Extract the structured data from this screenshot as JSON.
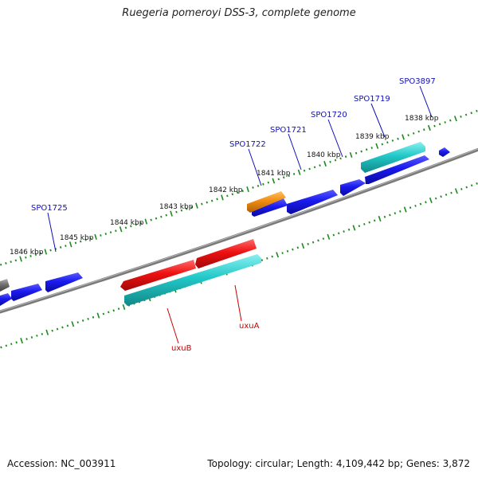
{
  "title": "Ruegeria pomeroyi DSS-3, complete genome",
  "footer": {
    "accession": "Accession: NC_003911",
    "summary": "Topology: circular; Length: 4,109,442 bp; Genes: 3,872"
  },
  "colors": {
    "backbone": "#7a7a7a",
    "tick": "#1e8a1e",
    "forward_gene": "#1a1aee",
    "reverse_gene": "#e01010",
    "cyan_gene": "#22c8c8",
    "orange_gene": "#f08c10",
    "gray_gene": "#707070",
    "blue_label": "#1010bb",
    "red_label": "#cc0000"
  },
  "scale_labels": [
    "1838 kbp",
    "1839 kbp",
    "1840 kbp",
    "1841 kbp",
    "1842 kbp",
    "1843 kbp",
    "1844 kbp",
    "1845 kbp",
    "1846 kbp"
  ],
  "gene_labels": [
    "SPO3897",
    "SPO1719",
    "SPO1720",
    "SPO1721",
    "SPO1722",
    "SPO1725"
  ],
  "rna_labels": [
    "uxuA",
    "uxuB"
  ]
}
